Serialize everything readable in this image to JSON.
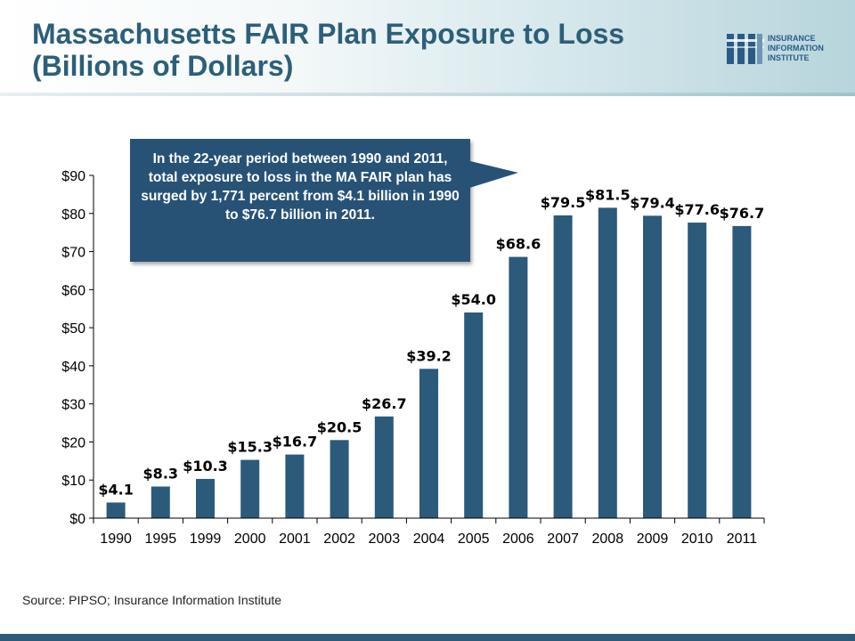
{
  "header": {
    "title_line1": "Massachusetts FAIR Plan Exposure to Loss",
    "title_line2": "(Billions of Dollars)"
  },
  "logo": {
    "line1": "INSURANCE",
    "line2": "INFORMATION",
    "line3": "INSTITUTE"
  },
  "callout": {
    "text": "In the 22-year period between 1990 and 2011, total exposure to loss in the MA FAIR plan has surged by 1,771 percent from $4.1 billion in 1990 to $76.7 billion in 2011."
  },
  "source": "Source: PIPSO; Insurance Information Institute",
  "colors": {
    "bar": "#2b5a7a",
    "title": "#2d5f78",
    "callout": "#275276"
  },
  "chart_data": {
    "type": "bar",
    "title": "Massachusetts FAIR Plan Exposure to Loss (Billions of Dollars)",
    "categories": [
      "1990",
      "1995",
      "1999",
      "2000",
      "2001",
      "2002",
      "2003",
      "2004",
      "2005",
      "2006",
      "2007",
      "2008",
      "2009",
      "2010",
      "2011"
    ],
    "values": [
      4.1,
      8.3,
      10.3,
      15.3,
      16.7,
      20.5,
      26.7,
      39.2,
      54.0,
      68.6,
      79.5,
      81.5,
      79.4,
      77.6,
      76.7
    ],
    "data_labels": [
      "$4.1",
      "$8.3",
      "$10.3",
      "$15.3",
      "$16.7",
      "$20.5",
      "$26.7",
      "$39.2",
      "$54.0",
      "$68.6",
      "$79.5",
      "$81.5",
      "$79.4",
      "$77.6",
      "$76.7"
    ],
    "ylim": [
      0,
      90
    ],
    "yticks": [
      0,
      10,
      20,
      30,
      40,
      50,
      60,
      70,
      80,
      90
    ],
    "ytick_labels": [
      "$0",
      "$10",
      "$20",
      "$30",
      "$40",
      "$50",
      "$60",
      "$70",
      "$80",
      "$90"
    ],
    "xlabel": "",
    "ylabel": "",
    "grid": false,
    "legend": "none"
  }
}
